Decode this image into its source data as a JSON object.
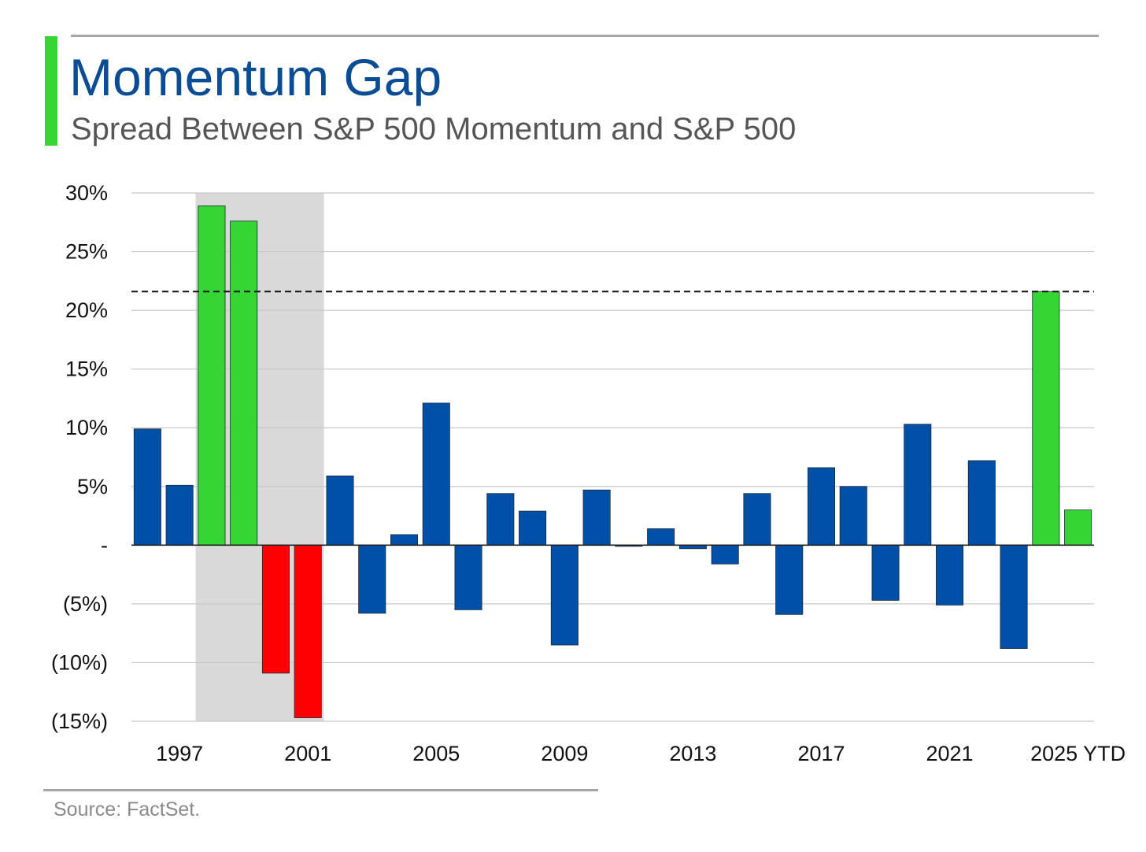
{
  "header": {
    "title": "Momentum Gap",
    "subtitle": "Spread Between S&P 500 Momentum and S&P 500"
  },
  "footer": {
    "source": "Source: FactSet."
  },
  "colors": {
    "accent": "#33d633",
    "title": "#0b4d94",
    "positive_highlight": "#33d633",
    "negative_highlight": "#ff0000",
    "normal": "#0050a8",
    "shade": "#d9d9d9"
  },
  "chart_data": {
    "type": "bar",
    "title": "Momentum Gap",
    "subtitle": "Spread Between S&P 500 Momentum and S&P 500",
    "categories": [
      "1996",
      "1997",
      "1998",
      "1999",
      "2000",
      "2001",
      "2002",
      "2003",
      "2004",
      "2005",
      "2006",
      "2007",
      "2008",
      "2009",
      "2010",
      "2011",
      "2012",
      "2013",
      "2014",
      "2015",
      "2016",
      "2017",
      "2018",
      "2019",
      "2020",
      "2021",
      "2022",
      "2023",
      "2024",
      "2025 YTD"
    ],
    "values": [
      9.9,
      5.1,
      28.9,
      27.6,
      -10.9,
      -14.7,
      5.9,
      -5.8,
      0.9,
      12.1,
      -5.5,
      4.4,
      2.9,
      -8.5,
      4.7,
      -0.1,
      1.4,
      -0.3,
      -1.6,
      4.4,
      -5.9,
      6.6,
      5.0,
      -4.7,
      10.3,
      -5.1,
      7.2,
      -8.8,
      21.6,
      3.0
    ],
    "bar_colors": [
      "normal",
      "normal",
      "positive_highlight",
      "positive_highlight",
      "negative_highlight",
      "negative_highlight",
      "normal",
      "normal",
      "normal",
      "normal",
      "normal",
      "normal",
      "normal",
      "normal",
      "normal",
      "normal",
      "normal",
      "normal",
      "normal",
      "normal",
      "normal",
      "normal",
      "normal",
      "normal",
      "normal",
      "normal",
      "normal",
      "normal",
      "positive_highlight",
      "positive_highlight"
    ],
    "x_tick_labels": [
      {
        "category": "1997",
        "label": "1997"
      },
      {
        "category": "2001",
        "label": "2001"
      },
      {
        "category": "2005",
        "label": "2005"
      },
      {
        "category": "2009",
        "label": "2009"
      },
      {
        "category": "2013",
        "label": "2013"
      },
      {
        "category": "2017",
        "label": "2017"
      },
      {
        "category": "2021",
        "label": "2021"
      },
      {
        "category": "2025 YTD",
        "label": "2025 YTD"
      }
    ],
    "y_ticks": [
      {
        "value": 30,
        "label": "30%"
      },
      {
        "value": 25,
        "label": "25%"
      },
      {
        "value": 20,
        "label": "20%"
      },
      {
        "value": 15,
        "label": "15%"
      },
      {
        "value": 10,
        "label": "10%"
      },
      {
        "value": 5,
        "label": "5%"
      },
      {
        "value": 0,
        "label": "-"
      },
      {
        "value": -5,
        "label": "(5%)"
      },
      {
        "value": -10,
        "label": "(10%)"
      },
      {
        "value": -15,
        "label": "(15%)"
      }
    ],
    "ylim": [
      -15,
      30
    ],
    "reference_line": {
      "value": 21.6,
      "style": "dashed"
    },
    "shaded_period": {
      "from": "1998",
      "to": "2001"
    },
    "grid": true,
    "legend": "none",
    "xlabel": "",
    "ylabel": ""
  }
}
